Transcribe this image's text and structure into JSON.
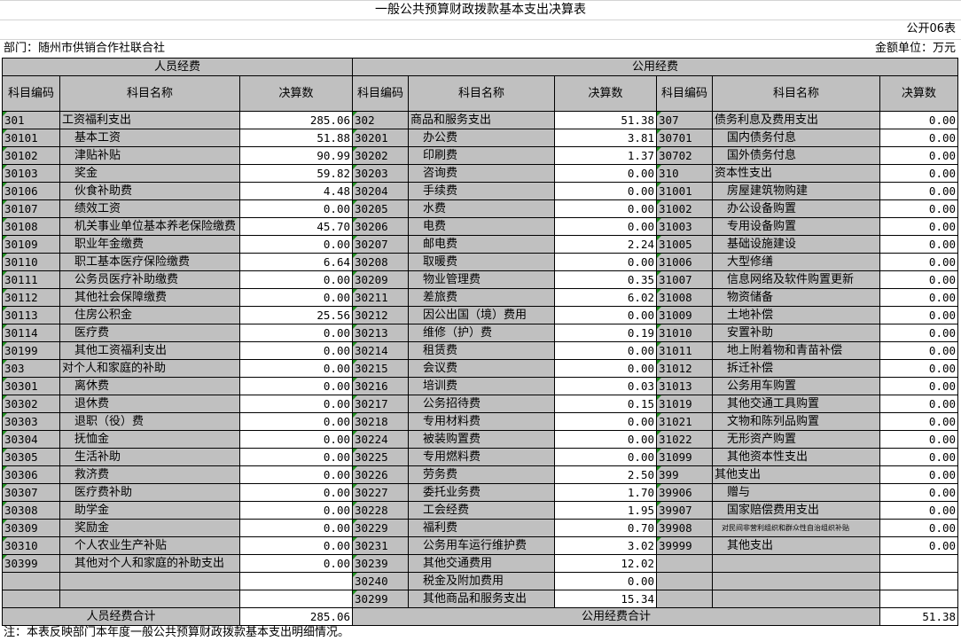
{
  "title": "一般公共预算财政拨款基本支出决算表",
  "form_no": "公开06表",
  "department": "部门：随州市供销合作社联合社",
  "unit": "金额单位：万元",
  "headers": {
    "personnel": "人员经费",
    "public": "公用经费",
    "code": "科目编码",
    "name": "科目名称",
    "amount": "决算数"
  },
  "left": [
    {
      "code": "301",
      "name": "工资福利支出",
      "value": "285.06"
    },
    {
      "code": "30101",
      "name": "基本工资",
      "value": "51.88"
    },
    {
      "code": "30102",
      "name": "津贴补贴",
      "value": "90.99"
    },
    {
      "code": "30103",
      "name": "奖金",
      "value": "59.82"
    },
    {
      "code": "30106",
      "name": "伙食补助费",
      "value": "4.48"
    },
    {
      "code": "30107",
      "name": "绩效工资",
      "value": "0.00"
    },
    {
      "code": "30108",
      "name": "机关事业单位基本养老保险缴费",
      "value": "45.70"
    },
    {
      "code": "30109",
      "name": "职业年金缴费",
      "value": "0.00"
    },
    {
      "code": "30110",
      "name": "职工基本医疗保险缴费",
      "value": "6.64"
    },
    {
      "code": "30111",
      "name": "公务员医疗补助缴费",
      "value": "0.00"
    },
    {
      "code": "30112",
      "name": "其他社会保障缴费",
      "value": "0.00"
    },
    {
      "code": "30113",
      "name": "住房公积金",
      "value": "25.56"
    },
    {
      "code": "30114",
      "name": "医疗费",
      "value": "0.00"
    },
    {
      "code": "30199",
      "name": "其他工资福利支出",
      "value": "0.00"
    },
    {
      "code": "303",
      "name": "对个人和家庭的补助",
      "value": "0.00"
    },
    {
      "code": "30301",
      "name": "离休费",
      "value": "0.00"
    },
    {
      "code": "30302",
      "name": "退休费",
      "value": "0.00"
    },
    {
      "code": "30303",
      "name": "退职（役）费",
      "value": "0.00"
    },
    {
      "code": "30304",
      "name": "抚恤金",
      "value": "0.00"
    },
    {
      "code": "30305",
      "name": "生活补助",
      "value": "0.00"
    },
    {
      "code": "30306",
      "name": "救济费",
      "value": "0.00"
    },
    {
      "code": "30307",
      "name": "医疗费补助",
      "value": "0.00"
    },
    {
      "code": "30308",
      "name": "助学金",
      "value": "0.00"
    },
    {
      "code": "30309",
      "name": "奖励金",
      "value": "0.00"
    },
    {
      "code": "30310",
      "name": "个人农业生产补贴",
      "value": "0.00"
    },
    {
      "code": "30399",
      "name": "其他对个人和家庭的补助支出",
      "value": "0.00"
    }
  ],
  "middle": [
    {
      "code": "302",
      "name": "商品和服务支出",
      "value": "51.38"
    },
    {
      "code": "30201",
      "name": "办公费",
      "value": "3.81"
    },
    {
      "code": "30202",
      "name": "印刷费",
      "value": "1.37"
    },
    {
      "code": "30203",
      "name": "咨询费",
      "value": "0.00"
    },
    {
      "code": "30204",
      "name": "手续费",
      "value": "0.00"
    },
    {
      "code": "30205",
      "name": "水费",
      "value": "0.00"
    },
    {
      "code": "30206",
      "name": "电费",
      "value": "0.00"
    },
    {
      "code": "30207",
      "name": "邮电费",
      "value": "2.24"
    },
    {
      "code": "30208",
      "name": "取暖费",
      "value": "0.00"
    },
    {
      "code": "30209",
      "name": "物业管理费",
      "value": "0.35"
    },
    {
      "code": "30211",
      "name": "差旅费",
      "value": "6.02"
    },
    {
      "code": "30212",
      "name": "因公出国（境）费用",
      "value": "0.00"
    },
    {
      "code": "30213",
      "name": "维修（护）费",
      "value": "0.19"
    },
    {
      "code": "30214",
      "name": "租赁费",
      "value": "0.00"
    },
    {
      "code": "30215",
      "name": "会议费",
      "value": "0.00"
    },
    {
      "code": "30216",
      "name": "培训费",
      "value": "0.03"
    },
    {
      "code": "30217",
      "name": "公务招待费",
      "value": "0.15"
    },
    {
      "code": "30218",
      "name": "专用材料费",
      "value": "0.00"
    },
    {
      "code": "30224",
      "name": "被装购置费",
      "value": "0.00"
    },
    {
      "code": "30225",
      "name": "专用燃料费",
      "value": "0.00"
    },
    {
      "code": "30226",
      "name": "劳务费",
      "value": "2.50"
    },
    {
      "code": "30227",
      "name": "委托业务费",
      "value": "1.70"
    },
    {
      "code": "30228",
      "name": "工会经费",
      "value": "1.95"
    },
    {
      "code": "30229",
      "name": "福利费",
      "value": "0.70"
    },
    {
      "code": "30231",
      "name": "公务用车运行维护费",
      "value": "3.02"
    },
    {
      "code": "30239",
      "name": "其他交通费用",
      "value": "12.02"
    },
    {
      "code": "30240",
      "name": "税金及附加费用",
      "value": "0.00"
    },
    {
      "code": "30299",
      "name": "其他商品和服务支出",
      "value": "15.34"
    }
  ],
  "right": [
    {
      "code": "307",
      "name": "债务利息及费用支出",
      "value": "0.00"
    },
    {
      "code": "30701",
      "name": "国内债务付息",
      "value": "0.00"
    },
    {
      "code": "30702",
      "name": "国外债务付息",
      "value": "0.00"
    },
    {
      "code": "310",
      "name": "资本性支出",
      "value": "0.00"
    },
    {
      "code": "31001",
      "name": "房屋建筑物购建",
      "value": "0.00"
    },
    {
      "code": "31002",
      "name": "办公设备购置",
      "value": "0.00"
    },
    {
      "code": "31003",
      "name": "专用设备购置",
      "value": "0.00"
    },
    {
      "code": "31005",
      "name": "基础设施建设",
      "value": "0.00"
    },
    {
      "code": "31006",
      "name": "大型修缮",
      "value": "0.00"
    },
    {
      "code": "31007",
      "name": "信息网络及软件购置更新",
      "value": "0.00"
    },
    {
      "code": "31008",
      "name": "物资储备",
      "value": "0.00"
    },
    {
      "code": "31009",
      "name": "土地补偿",
      "value": "0.00"
    },
    {
      "code": "31010",
      "name": "安置补助",
      "value": "0.00"
    },
    {
      "code": "31011",
      "name": "地上附着物和青苗补偿",
      "value": "0.00"
    },
    {
      "code": "31012",
      "name": "拆迁补偿",
      "value": "0.00"
    },
    {
      "code": "31013",
      "name": "公务用车购置",
      "value": "0.00"
    },
    {
      "code": "31019",
      "name": "其他交通工具购置",
      "value": "0.00"
    },
    {
      "code": "31021",
      "name": "文物和陈列品购置",
      "value": "0.00"
    },
    {
      "code": "31022",
      "name": "无形资产购置",
      "value": "0.00"
    },
    {
      "code": "31099",
      "name": "其他资本性支出",
      "value": "0.00"
    },
    {
      "code": "399",
      "name": "其他支出",
      "value": "0.00"
    },
    {
      "code": "39906",
      "name": "赠与",
      "value": "0.00"
    },
    {
      "code": "39907",
      "name": "国家赔偿费用支出",
      "value": "0.00"
    },
    {
      "code": "39908",
      "name": "对民间非营利组织和群众性自治组织补贴",
      "value": "0.00"
    },
    {
      "code": "39999",
      "name": "其他支出",
      "value": "0.00"
    }
  ],
  "totals": {
    "personnel_label": "人员经费合计",
    "personnel_value": "285.06",
    "public_label": "公用经费合计",
    "public_value": "51.38"
  },
  "note": "注：本表反映部门本年度一般公共预算财政拨款基本支出明细情况。",
  "colors": {
    "cell_gray": "#c0c0c0",
    "marker_green": "#1f8f1f"
  }
}
